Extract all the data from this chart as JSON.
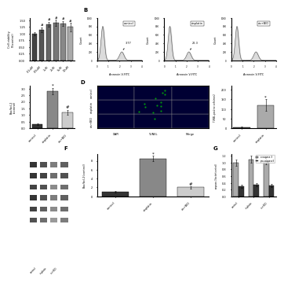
{
  "panel_A_categories": [
    "0.1uM",
    "0.5uM",
    "1uM",
    "2uM",
    "5uM",
    "10uM"
  ],
  "panel_A_values": [
    1.0,
    1.15,
    1.35,
    1.4,
    1.38,
    1.25
  ],
  "panel_A_errors": [
    0.05,
    0.08,
    0.1,
    0.12,
    0.1,
    0.15
  ],
  "panel_F_categories": [
    "control",
    "cisplatin",
    "cis+BIO"
  ],
  "panel_F_values": [
    1.0,
    8.5,
    2.0
  ],
  "panel_F_errors": [
    0.15,
    0.6,
    0.3
  ],
  "panel_F_colors": [
    "#333333",
    "#888888",
    "#cccccc"
  ],
  "panel_G_categories": [
    "control",
    "cisplatin",
    "cis+BIO"
  ],
  "panel_G_c_caspase3": [
    1.0,
    1.1,
    1.05
  ],
  "panel_G_pro_caspase3": [
    0.3,
    0.35,
    0.32
  ],
  "panel_G_errors_c": [
    0.1,
    0.1,
    0.1
  ],
  "panel_G_errors_p": [
    0.05,
    0.05,
    0.05
  ],
  "tunel_ylabel": "TUNEL-positive cells/mm2",
  "tunel_categories": [
    "control",
    "cisplatin"
  ],
  "tunel_values": [
    5,
    120
  ],
  "tunel_errors": [
    5,
    30
  ],
  "flow_control_label": "control",
  "flow_cisplatin_label": "cisplatin",
  "flow_bio_label": "cis+BIO",
  "flow_control_pct": "3.77",
  "flow_cisplatin_pct": "22.3",
  "bg_color": "#ffffff",
  "bar_edge_color": "#000000"
}
